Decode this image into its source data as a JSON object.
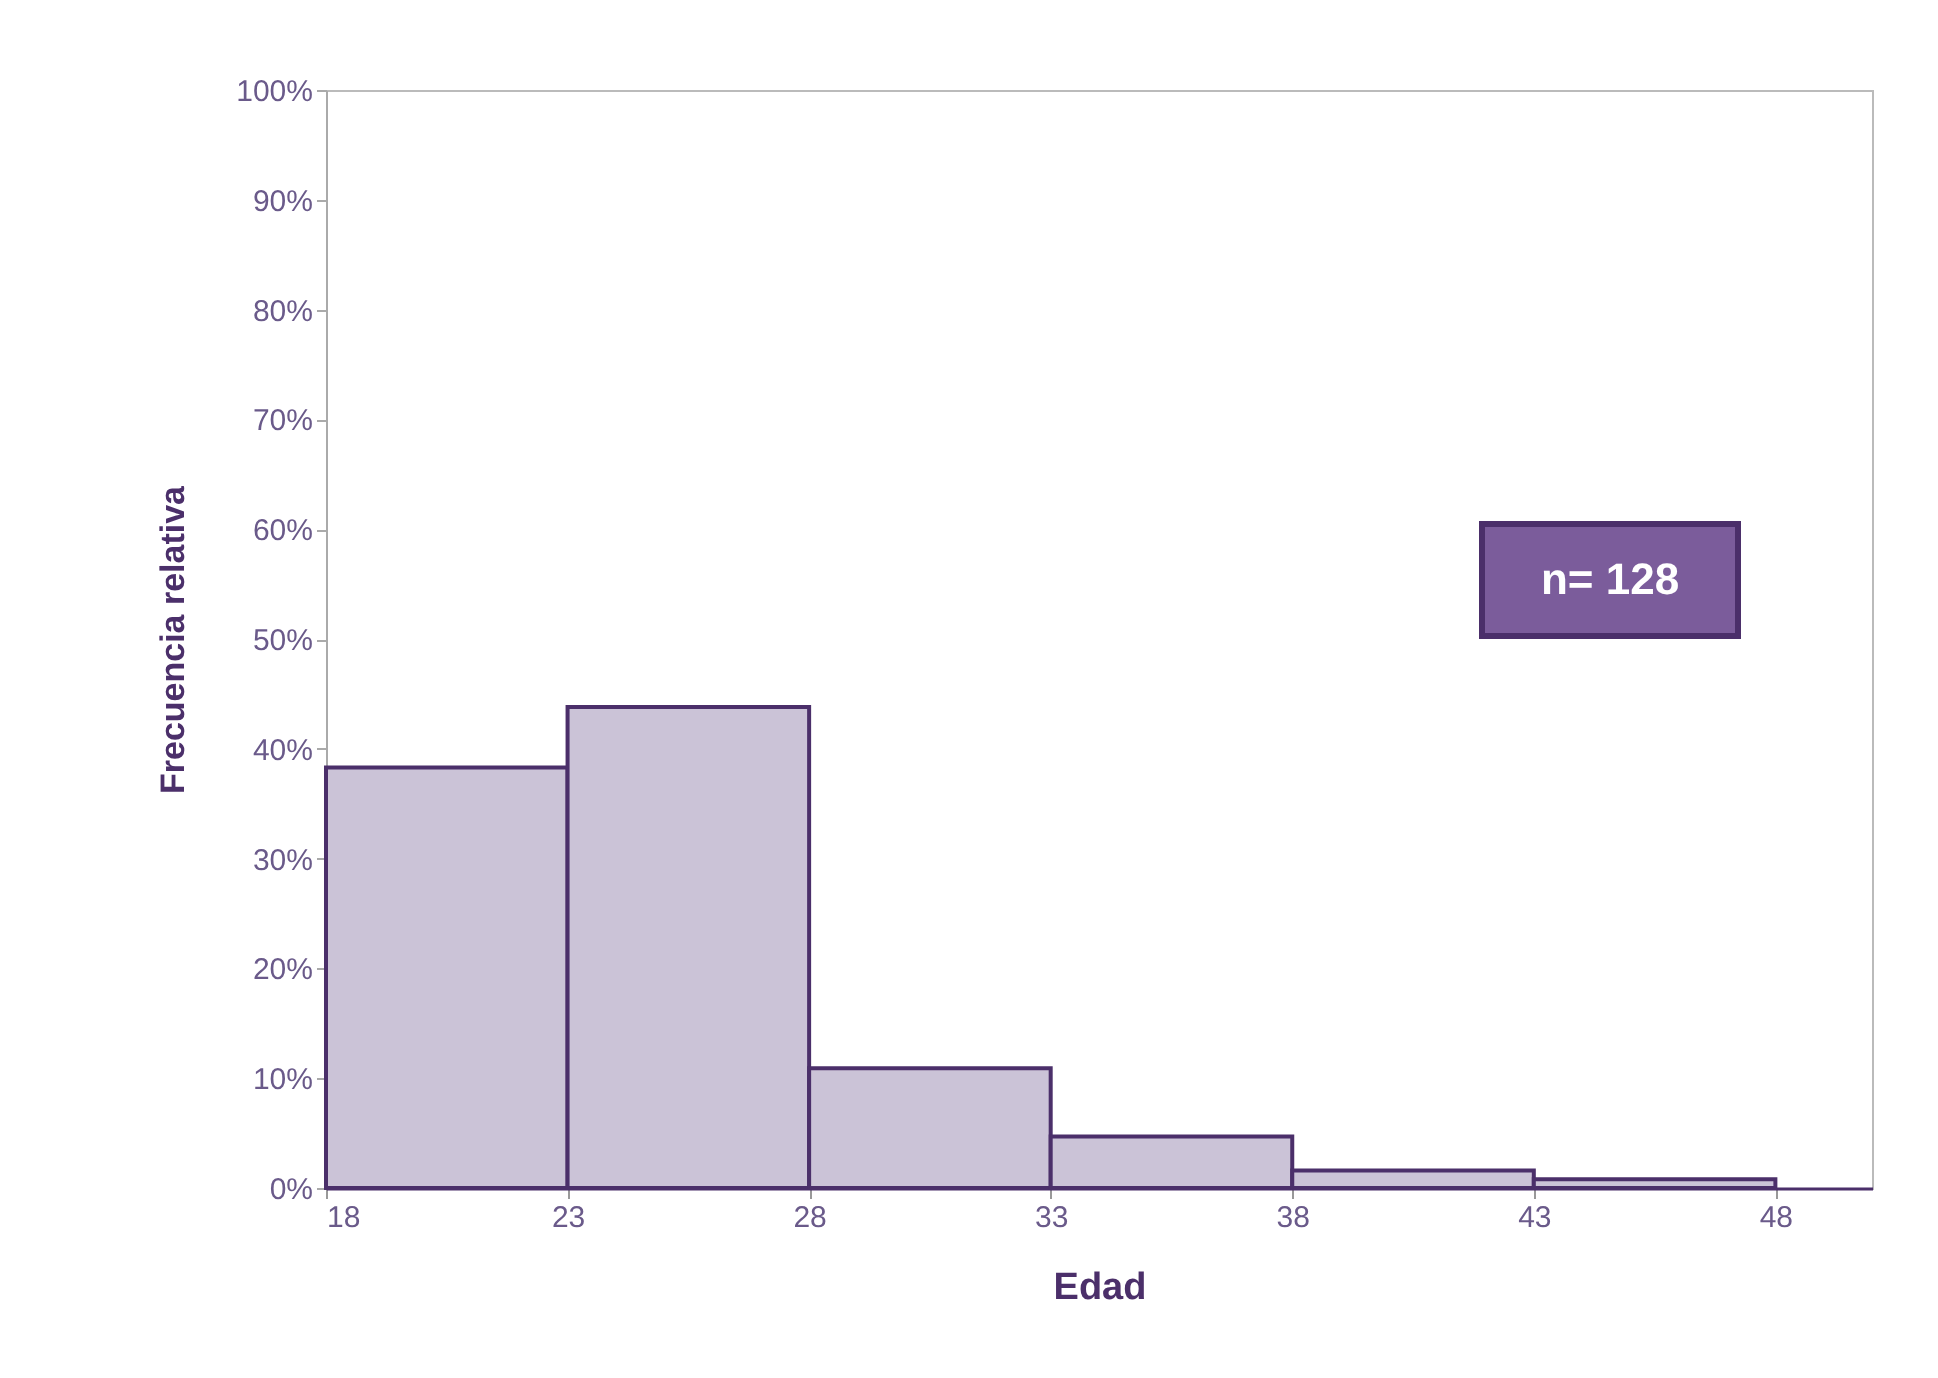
{
  "chart_data": {
    "type": "histogram",
    "xlabel": "Edad",
    "ylabel": "Frecuencia relativa",
    "bins": [
      18,
      23,
      28,
      33,
      38,
      43,
      48
    ],
    "values": [
      38.3,
      43.8,
      10.9,
      4.7,
      1.6,
      0.8
    ],
    "color": "#cbc3d7",
    "xlim": [
      18,
      50
    ],
    "xticks": [
      18,
      23,
      28,
      33,
      38,
      43,
      48
    ],
    "ylim": [
      0,
      100
    ],
    "yticks": [
      {
        "value": 0,
        "label": "0%"
      },
      {
        "value": 10,
        "label": "10%"
      },
      {
        "value": 20,
        "label": "20%"
      },
      {
        "value": 30,
        "label": "30%"
      },
      {
        "value": 40,
        "label": "40%"
      },
      {
        "value": 50,
        "label": "50%"
      },
      {
        "value": 60,
        "label": "60%"
      },
      {
        "value": 70,
        "label": "70%"
      },
      {
        "value": 80,
        "label": "80%"
      },
      {
        "value": 90,
        "label": "90%"
      },
      {
        "value": 100,
        "label": "100%"
      }
    ],
    "grid": false,
    "annotations": [
      "n= 128"
    ]
  }
}
